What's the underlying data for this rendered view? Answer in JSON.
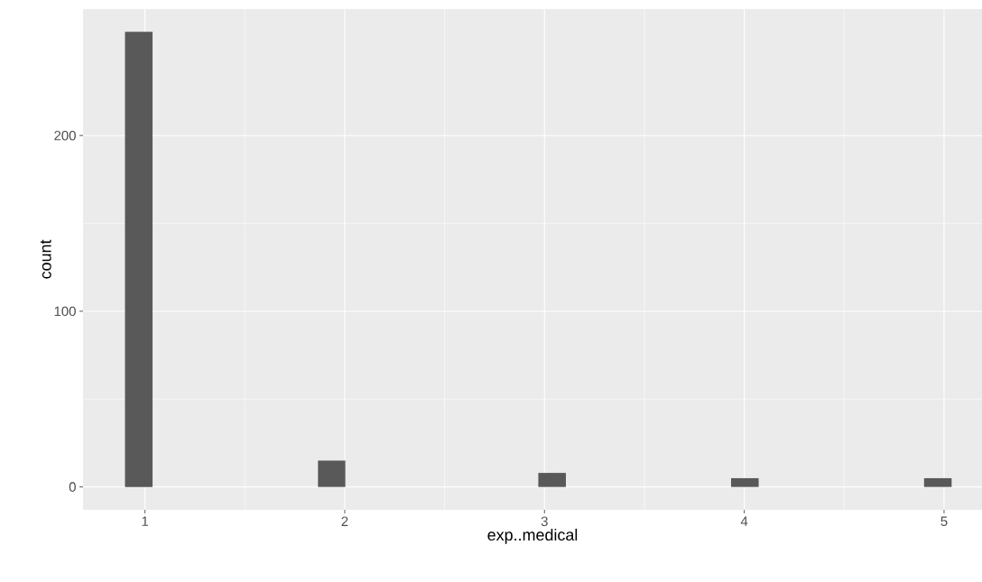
{
  "chart_data": {
    "type": "histogram",
    "xlabel": "exp..medical",
    "ylabel": "count",
    "bins": [
      0.9,
      1.038,
      1.176,
      1.314,
      1.452,
      1.59,
      1.728,
      1.866,
      2.003,
      2.141,
      2.279,
      2.417,
      2.555,
      2.693,
      2.831,
      2.969,
      3.107,
      3.245,
      3.383,
      3.521,
      3.659,
      3.797,
      3.934,
      4.072,
      4.21,
      4.348,
      4.486,
      4.624,
      4.762,
      4.9,
      5.038
    ],
    "values": [
      259,
      0,
      0,
      0,
      0,
      0,
      0,
      15,
      0,
      0,
      0,
      0,
      0,
      0,
      0,
      8,
      0,
      0,
      0,
      0,
      0,
      0,
      5,
      0,
      0,
      0,
      0,
      0,
      0,
      5
    ],
    "color": "#595959",
    "xlim": [
      0.69,
      5.19
    ],
    "ylim": [
      -13,
      272
    ],
    "xticks": [
      1,
      2,
      3,
      4,
      5
    ],
    "yticks": [
      0,
      100,
      200
    ],
    "grid": true
  }
}
